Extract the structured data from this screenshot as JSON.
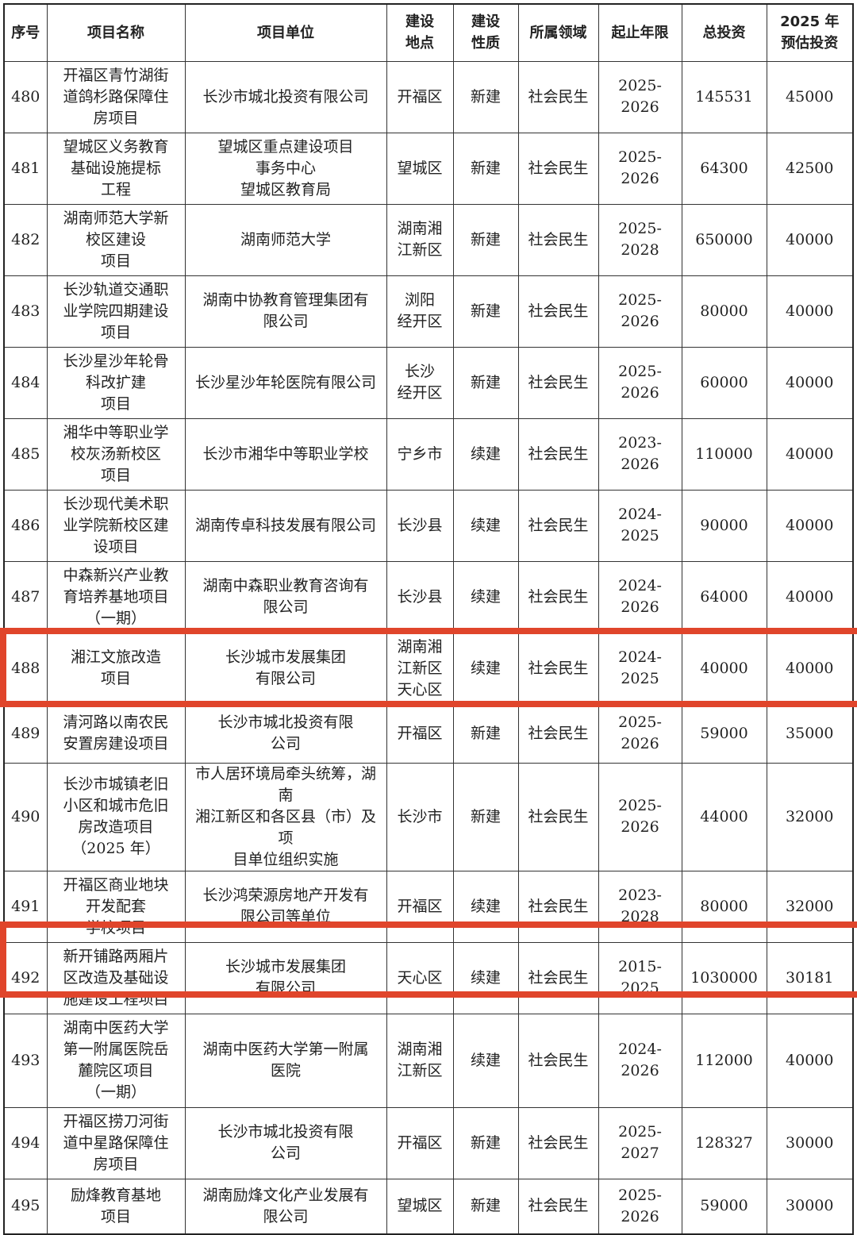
{
  "headers": [
    "序号",
    "项目名称",
    "项目单位",
    "建设\n地点",
    "建设\n性质",
    "所属领域",
    "起止年限",
    "总投资",
    "2025 年\n预估投资"
  ],
  "highlight_color": "#e0452b",
  "highlighted_rows": [
    "488",
    "492"
  ],
  "rows": [
    {
      "no": "480",
      "name": "开福区青竹湖街\n道鸽杉路保障住\n房项目",
      "unit": "长沙市城北投资有限公司",
      "loc": "开福区",
      "nature": "新建",
      "field": "社会民生",
      "years": "2025-2026",
      "total": "145531",
      "est2025": "45000"
    },
    {
      "no": "481",
      "name": "望城区义务教育\n基础设施提标\n工程",
      "unit": "望城区重点建设项目\n事务中心\n望城区教育局",
      "loc": "望城区",
      "nature": "新建",
      "field": "社会民生",
      "years": "2025-2026",
      "total": "64300",
      "est2025": "42500"
    },
    {
      "no": "482",
      "name": "湖南师范大学新\n校区建设\n项目",
      "unit": "湖南师范大学",
      "loc": "湖南湘\n江新区",
      "nature": "新建",
      "field": "社会民生",
      "years": "2025-2028",
      "total": "650000",
      "est2025": "40000"
    },
    {
      "no": "483",
      "name": "长沙轨道交通职\n业学院四期建设\n项目",
      "unit": "湖南中协教育管理集团有\n限公司",
      "loc": "浏阳\n经开区",
      "nature": "新建",
      "field": "社会民生",
      "years": "2025-2026",
      "total": "80000",
      "est2025": "40000"
    },
    {
      "no": "484",
      "name": "长沙星沙年轮骨\n科改扩建\n项目",
      "unit": "长沙星沙年轮医院有限公司",
      "loc": "长沙\n经开区",
      "nature": "新建",
      "field": "社会民生",
      "years": "2025-2026",
      "total": "60000",
      "est2025": "40000"
    },
    {
      "no": "485",
      "name": "湘华中等职业学\n校灰汤新校区\n项目",
      "unit": "长沙市湘华中等职业学校",
      "loc": "宁乡市",
      "nature": "续建",
      "field": "社会民生",
      "years": "2023-2026",
      "total": "110000",
      "est2025": "40000"
    },
    {
      "no": "486",
      "name": "长沙现代美术职\n业学院新校区建\n设项目",
      "unit": "湖南传卓科技发展有限公司",
      "loc": "长沙县",
      "nature": "续建",
      "field": "社会民生",
      "years": "2024-2025",
      "total": "90000",
      "est2025": "40000"
    },
    {
      "no": "487",
      "name": "中森新兴产业教\n育培养基地项目\n（一期）",
      "unit": "湖南中森职业教育咨询有\n限公司",
      "loc": "长沙县",
      "nature": "续建",
      "field": "社会民生",
      "years": "2024-2026",
      "total": "64000",
      "est2025": "40000"
    },
    {
      "no": "488",
      "name": "湘江文旅改造\n项目",
      "unit": "长沙城市发展集团\n有限公司",
      "loc": "湖南湘\n江新区\n天心区",
      "nature": "续建",
      "field": "社会民生",
      "years": "2024-2025",
      "total": "40000",
      "est2025": "40000"
    },
    {
      "no": "489",
      "name": "清河路以南农民\n安置房建设项目",
      "unit": "长沙市城北投资有限\n公司",
      "loc": "开福区",
      "nature": "新建",
      "field": "社会民生",
      "years": "2025-2026",
      "total": "59000",
      "est2025": "35000"
    },
    {
      "no": "490",
      "name": "长沙市城镇老旧\n小区和城市危旧\n房改造项目\n（2025 年）",
      "unit": "市人居环境局牵头统筹，湖南\n湘江新区和各区县（市）及项\n目单位组织实施",
      "loc": "长沙市",
      "nature": "新建",
      "field": "社会民生",
      "years": "2025-2026",
      "total": "44000",
      "est2025": "32000"
    },
    {
      "no": "491",
      "name": "开福区商业地块\n开发配套\n学校项目",
      "unit": "长沙鸿荣源房地产开发有\n限公司等单位",
      "loc": "开福区",
      "nature": "续建",
      "field": "社会民生",
      "years": "2023-2028",
      "total": "80000",
      "est2025": "32000"
    },
    {
      "no": "492",
      "name": "新开铺路两厢片\n区改造及基础设\n施建设工程项目",
      "unit": "长沙城市发展集团\n有限公司",
      "loc": "天心区",
      "nature": "续建",
      "field": "社会民生",
      "years": "2015-2025",
      "total": "1030000",
      "est2025": "30181"
    },
    {
      "no": "493",
      "name": "湖南中医药大学\n第一附属医院岳\n麓院区项目\n（一期）",
      "unit": "湖南中医药大学第一附属\n医院",
      "loc": "湖南湘\n江新区",
      "nature": "续建",
      "field": "社会民生",
      "years": "2024-2026",
      "total": "112000",
      "est2025": "40000"
    },
    {
      "no": "494",
      "name": "开福区捞刀河街\n道中星路保障住\n房项目",
      "unit": "长沙市城北投资有限\n公司",
      "loc": "开福区",
      "nature": "新建",
      "field": "社会民生",
      "years": "2025-2027",
      "total": "128327",
      "est2025": "30000"
    },
    {
      "no": "495",
      "name": "励烽教育基地\n项目",
      "unit": "湖南励烽文化产业发展有\n限公司",
      "loc": "望城区",
      "nature": "新建",
      "field": "社会民生",
      "years": "2025-2026",
      "total": "59000",
      "est2025": "30000"
    }
  ]
}
